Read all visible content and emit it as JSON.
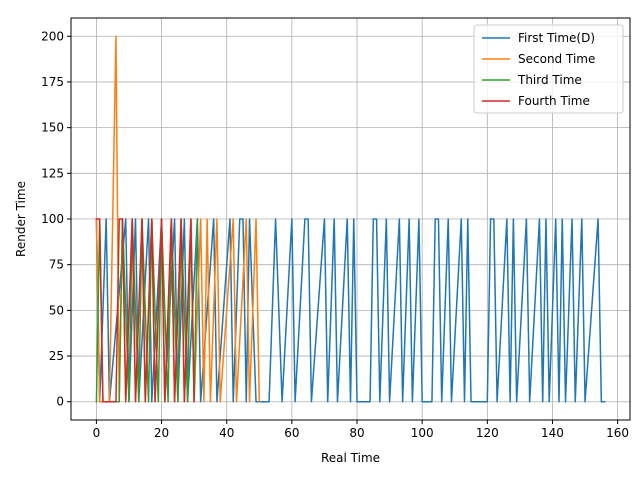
{
  "chart_data": {
    "type": "line",
    "title": "",
    "xlabel": "Real Time",
    "ylabel": "Render Time",
    "xlim": [
      -7.8,
      163.8
    ],
    "ylim": [
      -10,
      210
    ],
    "xticks": [
      0,
      20,
      40,
      60,
      80,
      100,
      120,
      140,
      160
    ],
    "yticks": [
      0,
      25,
      50,
      75,
      100,
      125,
      150,
      175,
      200
    ],
    "grid": true,
    "legend_position": "top-right",
    "series": [
      {
        "name": "First Time(D)",
        "color": "#1f77b4",
        "x": [
          0,
          1,
          3,
          4,
          9,
          10,
          12,
          13,
          16,
          17,
          20,
          21,
          24,
          25,
          27,
          28,
          31,
          32,
          36,
          37,
          41,
          42,
          44,
          45,
          46,
          47,
          49,
          50,
          53,
          55,
          57,
          60,
          61,
          64,
          65,
          66,
          70,
          71,
          73,
          74,
          77,
          78,
          79,
          80,
          84,
          85,
          86,
          87,
          89,
          90,
          93,
          94,
          96,
          97,
          99,
          100,
          103,
          104,
          105,
          106,
          108,
          109,
          112,
          113,
          114,
          115,
          120,
          121,
          122,
          123,
          126,
          127,
          128,
          129,
          132,
          133,
          136,
          137,
          138,
          139,
          141,
          142,
          143,
          144,
          146,
          147,
          149,
          150,
          154,
          155,
          156
        ],
        "values": [
          100,
          0,
          100,
          0,
          100,
          0,
          100,
          0,
          100,
          0,
          100,
          0,
          100,
          0,
          100,
          0,
          100,
          0,
          100,
          0,
          100,
          0,
          100,
          100,
          0,
          100,
          0,
          0,
          0,
          100,
          0,
          100,
          0,
          100,
          100,
          0,
          100,
          0,
          100,
          0,
          100,
          0,
          100,
          0,
          0,
          100,
          100,
          0,
          100,
          0,
          100,
          0,
          100,
          0,
          100,
          0,
          0,
          100,
          100,
          0,
          100,
          0,
          100,
          0,
          100,
          0,
          0,
          100,
          100,
          0,
          100,
          0,
          100,
          0,
          100,
          0,
          100,
          0,
          100,
          0,
          100,
          0,
          100,
          0,
          100,
          0,
          100,
          0,
          100,
          0,
          0
        ]
      },
      {
        "name": "Second Time",
        "color": "#ff7f0e",
        "x": [
          0,
          1,
          3,
          4,
          6,
          7,
          8,
          9,
          11,
          12,
          14,
          15,
          17,
          18,
          20,
          21,
          23,
          24,
          26,
          27,
          29,
          30,
          32,
          33,
          34,
          35,
          37,
          38,
          42,
          43,
          46,
          47,
          49,
          50
        ],
        "values": [
          100,
          0,
          0,
          0,
          200,
          0,
          100,
          0,
          100,
          0,
          100,
          0,
          100,
          0,
          100,
          0,
          100,
          0,
          100,
          0,
          100,
          0,
          100,
          0,
          100,
          0,
          100,
          0,
          100,
          0,
          100,
          0,
          100,
          0
        ]
      },
      {
        "name": "Third Time",
        "color": "#2ca02c",
        "x": [
          0,
          1,
          2,
          3,
          7,
          8,
          10,
          11,
          13,
          14,
          16,
          17,
          19,
          20,
          22,
          23,
          25,
          26,
          28,
          29,
          30,
          31
        ],
        "values": [
          0,
          100,
          0,
          0,
          0,
          100,
          0,
          100,
          0,
          100,
          0,
          100,
          0,
          100,
          0,
          100,
          0,
          100,
          0,
          100,
          0,
          100
        ]
      },
      {
        "name": "Fourth Time",
        "color": "#d62728",
        "x": [
          0,
          1,
          2,
          5,
          6,
          7,
          8,
          9,
          11,
          12,
          14,
          15,
          17,
          18,
          20,
          21,
          23,
          24,
          26,
          27,
          29,
          30
        ],
        "values": [
          100,
          100,
          0,
          0,
          0,
          100,
          100,
          0,
          100,
          0,
          100,
          0,
          100,
          0,
          100,
          0,
          100,
          0,
          100,
          0,
          100,
          0
        ]
      }
    ]
  }
}
